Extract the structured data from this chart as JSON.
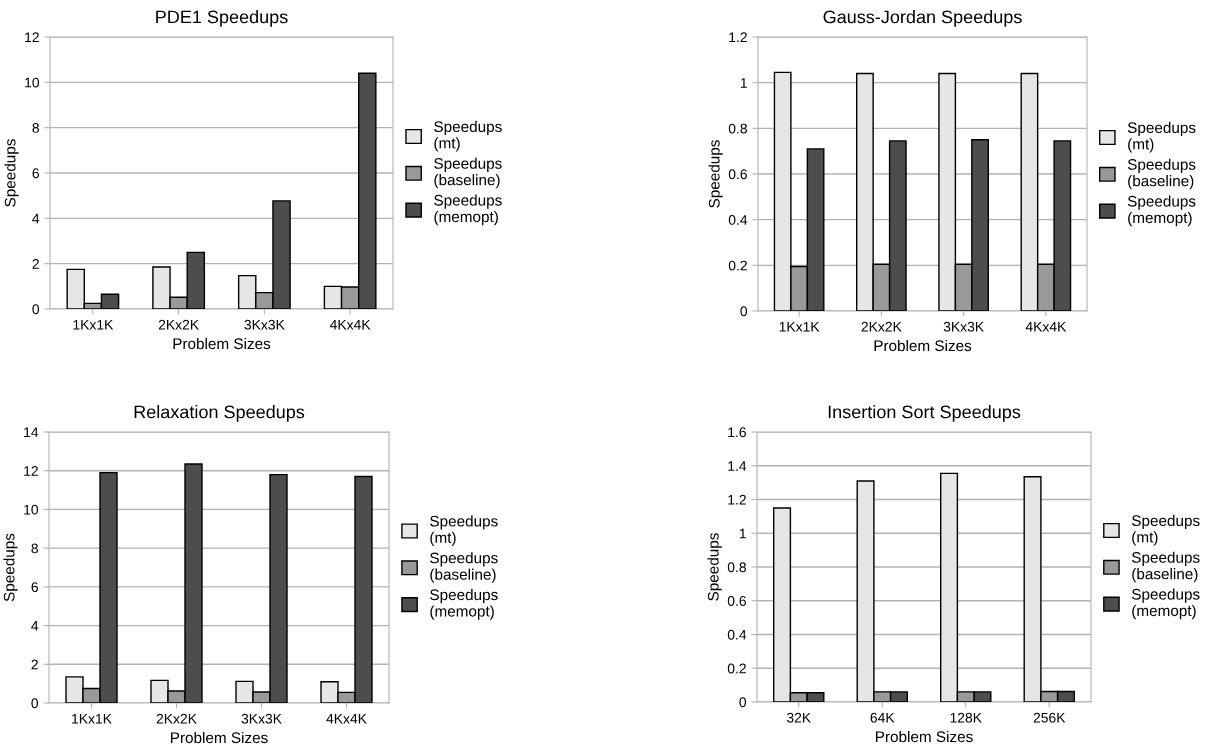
{
  "chart_data": [
    {
      "type": "bar",
      "title": "PDE1 Speedups",
      "xlabel": "Problem Sizes",
      "ylabel": "Speedups",
      "categories": [
        "1Kx1K",
        "2Kx2K",
        "3Kx3K",
        "4Kx4K"
      ],
      "ylim": [
        0,
        12
      ],
      "yticks": [
        0,
        2,
        4,
        6,
        8,
        10,
        12
      ],
      "grid": "y",
      "legend": "right",
      "series": [
        {
          "name": "Speedups\n(mt)",
          "color": "#e6e6e6",
          "values": [
            1.75,
            1.85,
            1.47,
            1.0
          ]
        },
        {
          "name": "Speedups\n(baseline)",
          "color": "#999999",
          "values": [
            0.25,
            0.52,
            0.72,
            0.97
          ]
        },
        {
          "name": "Speedups\n(memopt)",
          "color": "#4d4d4d",
          "values": [
            0.65,
            2.5,
            4.77,
            10.4
          ]
        }
      ]
    },
    {
      "type": "bar",
      "title": "Gauss-Jordan Speedups",
      "xlabel": "Problem Sizes",
      "ylabel": "Speedups",
      "categories": [
        "1Kx1K",
        "2Kx2K",
        "3Kx3K",
        "4Kx4K"
      ],
      "ylim": [
        0,
        1.2
      ],
      "yticks": [
        0,
        0.2,
        0.4,
        0.6,
        0.8,
        1,
        1.2
      ],
      "grid": "y",
      "legend": "right",
      "series": [
        {
          "name": "Speedups\n(mt)",
          "color": "#e6e6e6",
          "values": [
            1.045,
            1.04,
            1.04,
            1.04
          ]
        },
        {
          "name": "Speedups\n(baseline)",
          "color": "#999999",
          "values": [
            0.195,
            0.205,
            0.205,
            0.205
          ]
        },
        {
          "name": "Speedups\n(memopt)",
          "color": "#4d4d4d",
          "values": [
            0.71,
            0.745,
            0.75,
            0.745
          ]
        }
      ]
    },
    {
      "type": "bar",
      "title": "Relaxation Speedups",
      "xlabel": "Problem Sizes",
      "ylabel": "Speedups",
      "categories": [
        "1Kx1K",
        "2Kx2K",
        "3Kx3K",
        "4Kx4K"
      ],
      "ylim": [
        0,
        14
      ],
      "yticks": [
        0,
        2,
        4,
        6,
        8,
        10,
        12,
        14
      ],
      "grid": "y",
      "legend": "right",
      "series": [
        {
          "name": "Speedups\n(mt)",
          "color": "#e6e6e6",
          "values": [
            1.35,
            1.17,
            1.12,
            1.1
          ]
        },
        {
          "name": "Speedups\n(baseline)",
          "color": "#999999",
          "values": [
            0.75,
            0.62,
            0.57,
            0.55
          ]
        },
        {
          "name": "Speedups\n(memopt)",
          "color": "#4d4d4d",
          "values": [
            11.9,
            12.35,
            11.8,
            11.7
          ]
        }
      ]
    },
    {
      "type": "bar",
      "title": "Insertion Sort Speedups",
      "xlabel": "Problem Sizes",
      "ylabel": "Speedups",
      "categories": [
        "32K",
        "64K",
        "128K",
        "256K"
      ],
      "ylim": [
        0,
        1.6
      ],
      "yticks": [
        0,
        0.2,
        0.4,
        0.6,
        0.8,
        1,
        1.2,
        1.4,
        1.6
      ],
      "grid": "y",
      "legend": "right",
      "series": [
        {
          "name": "Speedups\n(mt)",
          "color": "#e6e6e6",
          "values": [
            1.15,
            1.31,
            1.355,
            1.335
          ]
        },
        {
          "name": "Speedups\n(baseline)",
          "color": "#999999",
          "values": [
            0.055,
            0.06,
            0.06,
            0.062
          ]
        },
        {
          "name": "Speedups\n(memopt)",
          "color": "#4d4d4d",
          "values": [
            0.055,
            0.06,
            0.06,
            0.062
          ]
        }
      ]
    }
  ]
}
